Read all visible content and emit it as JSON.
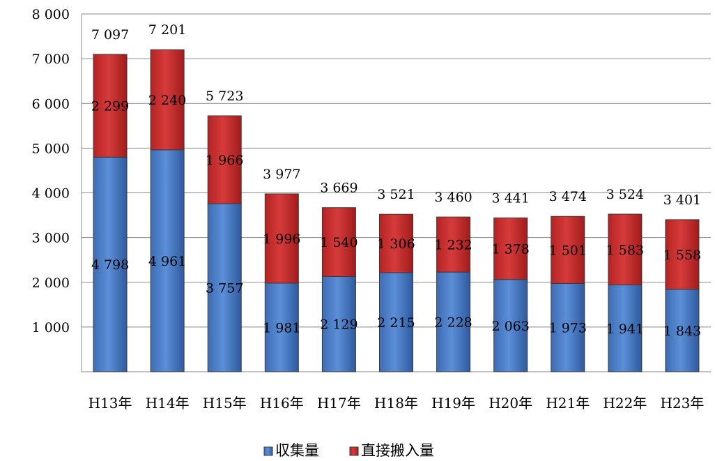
{
  "chart_data": {
    "type": "bar",
    "stacked": true,
    "categories": [
      "H13年",
      "H14年",
      "H15年",
      "H16年",
      "H17年",
      "H18年",
      "H19年",
      "H20年",
      "H21年",
      "H22年",
      "H23年"
    ],
    "series": [
      {
        "name": "収集量",
        "color": "#4a7dc4",
        "values": [
          4798,
          4961,
          3757,
          1981,
          2129,
          2215,
          2228,
          2063,
          1973,
          1941,
          1843
        ],
        "labels": [
          "4 798",
          "4 961",
          "3 757",
          "1 981",
          "2 129",
          "2 215",
          "2 228",
          "2 063",
          "1 973",
          "1 941",
          "1 843"
        ]
      },
      {
        "name": "直接搬入量",
        "color": "#c42d2d",
        "values": [
          2299,
          2240,
          1966,
          1996,
          1540,
          1306,
          1232,
          1378,
          1501,
          1583,
          1558
        ],
        "labels": [
          "2 299",
          "2 240",
          "1 966",
          "1 996",
          "1 540",
          "1 306",
          "1 232",
          "1 378",
          "1 501",
          "1 583",
          "1 558"
        ]
      }
    ],
    "totals": [
      7097,
      7201,
      5723,
      3977,
      3669,
      3521,
      3460,
      3441,
      3474,
      3524,
      3401
    ],
    "total_labels": [
      "7 097",
      "7 201",
      "5 723",
      "3 977",
      "3 669",
      "3 521",
      "3 460",
      "3 441",
      "3 474",
      "3 524",
      "3 401"
    ],
    "ylim": [
      0,
      8000
    ],
    "yticks": [
      1000,
      2000,
      3000,
      4000,
      5000,
      6000,
      7000,
      8000
    ],
    "ytick_labels": [
      "1 000",
      "2 000",
      "3 000",
      "4 000",
      "5 000",
      "6 000",
      "7 000",
      "8 000"
    ],
    "grid": true,
    "legend_position": "bottom-center",
    "title": "",
    "xlabel": "",
    "ylabel": ""
  }
}
